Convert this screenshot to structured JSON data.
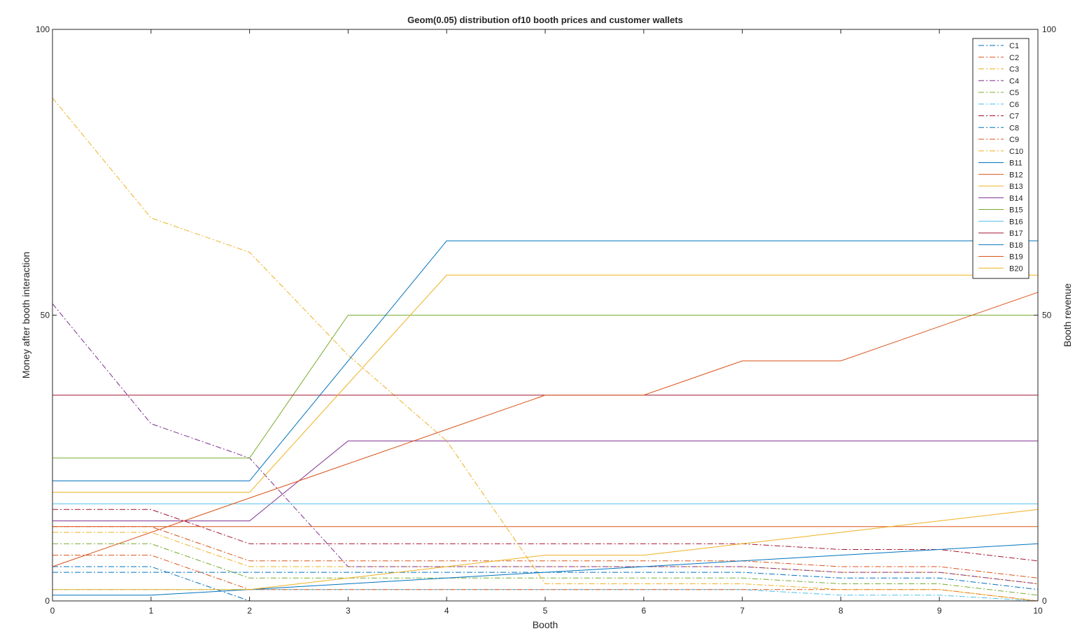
{
  "chart_data": {
    "type": "line",
    "title": "Geom(0.05) distribution of10 booth prices and customer wallets",
    "xlabel": "Booth",
    "ylabel": "Money after booth interaction",
    "ylabel_right": "Booth revenue",
    "xlim": [
      0,
      10
    ],
    "ylim": [
      0,
      100
    ],
    "ylim_right": [
      0,
      100
    ],
    "x_ticks": [
      "0",
      "1",
      "2",
      "3",
      "4",
      "5",
      "6",
      "7",
      "8",
      "9",
      "10"
    ],
    "y_ticks": [
      "0",
      "50",
      "100"
    ],
    "y_ticks_right": [
      "0",
      "50",
      "100"
    ],
    "grid": false,
    "legend_position": "top-right",
    "x": [
      0,
      1,
      2,
      3,
      4,
      5,
      6,
      7,
      8,
      9,
      10
    ],
    "series": [
      {
        "name": "C1",
        "axis": "left",
        "style": "dashdot",
        "color": "#0072BD",
        "values": [
          5,
          5,
          5,
          5,
          5,
          5,
          5,
          5,
          4,
          4,
          2
        ]
      },
      {
        "name": "C2",
        "axis": "left",
        "style": "dashdot",
        "color": "#D95319",
        "values": [
          13,
          13,
          7,
          7,
          7,
          7,
          7,
          7,
          6,
          6,
          4
        ]
      },
      {
        "name": "C3",
        "axis": "left",
        "style": "dashdot",
        "color": "#EDB120",
        "values": [
          12,
          12,
          6,
          6,
          6,
          6,
          6,
          6,
          5,
          5,
          3
        ]
      },
      {
        "name": "C4",
        "axis": "left",
        "style": "dashdot",
        "color": "#7E2F8E",
        "values": [
          52,
          31,
          25,
          6,
          6,
          6,
          6,
          6,
          5,
          5,
          3
        ]
      },
      {
        "name": "C5",
        "axis": "left",
        "style": "dashdot",
        "color": "#77AC30",
        "values": [
          10,
          10,
          4,
          4,
          4,
          4,
          4,
          4,
          3,
          3,
          1
        ]
      },
      {
        "name": "C6",
        "axis": "left",
        "style": "dashdot",
        "color": "#4DBEEE",
        "values": [
          2,
          2,
          2,
          2,
          2,
          2,
          2,
          2,
          1,
          1,
          0
        ]
      },
      {
        "name": "C7",
        "axis": "left",
        "style": "dashdot",
        "color": "#A2142F",
        "values": [
          16,
          16,
          10,
          10,
          10,
          10,
          10,
          10,
          9,
          9,
          7
        ]
      },
      {
        "name": "C8",
        "axis": "left",
        "style": "dashdot",
        "color": "#0072BD",
        "values": [
          6,
          6,
          0,
          0,
          0,
          0,
          0,
          0,
          0,
          0,
          0
        ]
      },
      {
        "name": "C9",
        "axis": "left",
        "style": "dashdot",
        "color": "#D95319",
        "values": [
          8,
          8,
          2,
          2,
          2,
          2,
          2,
          2,
          2,
          2,
          0
        ]
      },
      {
        "name": "C10",
        "axis": "left",
        "style": "dashdot",
        "color": "#EDB120",
        "values": [
          88,
          67,
          61,
          43,
          28,
          3,
          3,
          3,
          2,
          2,
          0
        ]
      },
      {
        "name": "B11",
        "axis": "right",
        "style": "solid",
        "color": "#0072BD",
        "values": [
          1,
          1,
          2,
          3,
          4,
          5,
          6,
          7,
          8,
          9,
          10
        ]
      },
      {
        "name": "B12",
        "axis": "right",
        "style": "solid",
        "color": "#D95319",
        "values": [
          13,
          13,
          13,
          13,
          13,
          13,
          13,
          13,
          13,
          13,
          13
        ]
      },
      {
        "name": "B13",
        "axis": "right",
        "style": "solid",
        "color": "#EDB120",
        "values": [
          2,
          2,
          2,
          4,
          6,
          8,
          8,
          10,
          12,
          14,
          16
        ]
      },
      {
        "name": "B14",
        "axis": "right",
        "style": "solid",
        "color": "#7E2F8E",
        "values": [
          14,
          14,
          14,
          28,
          28,
          28,
          28,
          28,
          28,
          28,
          28
        ]
      },
      {
        "name": "B15",
        "axis": "right",
        "style": "solid",
        "color": "#77AC30",
        "values": [
          25,
          25,
          25,
          50,
          50,
          50,
          50,
          50,
          50,
          50,
          50
        ]
      },
      {
        "name": "B16",
        "axis": "right",
        "style": "solid",
        "color": "#4DBEEE",
        "values": [
          17,
          17,
          17,
          17,
          17,
          17,
          17,
          17,
          17,
          17,
          17
        ]
      },
      {
        "name": "B17",
        "axis": "right",
        "style": "solid",
        "color": "#A2142F",
        "values": [
          36,
          36,
          36,
          36,
          36,
          36,
          36,
          36,
          36,
          36,
          36
        ]
      },
      {
        "name": "B18",
        "axis": "right",
        "style": "solid",
        "color": "#0072BD",
        "values": [
          21,
          21,
          21,
          42,
          63,
          63,
          63,
          63,
          63,
          63,
          63
        ]
      },
      {
        "name": "B19",
        "axis": "right",
        "style": "solid",
        "color": "#D95319",
        "values": [
          6,
          12,
          18,
          24,
          30,
          36,
          36,
          42,
          42,
          48,
          54
        ]
      },
      {
        "name": "B20",
        "axis": "right",
        "style": "solid",
        "color": "#EDB120",
        "values": [
          19,
          19,
          19,
          38,
          57,
          57,
          57,
          57,
          57,
          57,
          57
        ]
      }
    ]
  }
}
